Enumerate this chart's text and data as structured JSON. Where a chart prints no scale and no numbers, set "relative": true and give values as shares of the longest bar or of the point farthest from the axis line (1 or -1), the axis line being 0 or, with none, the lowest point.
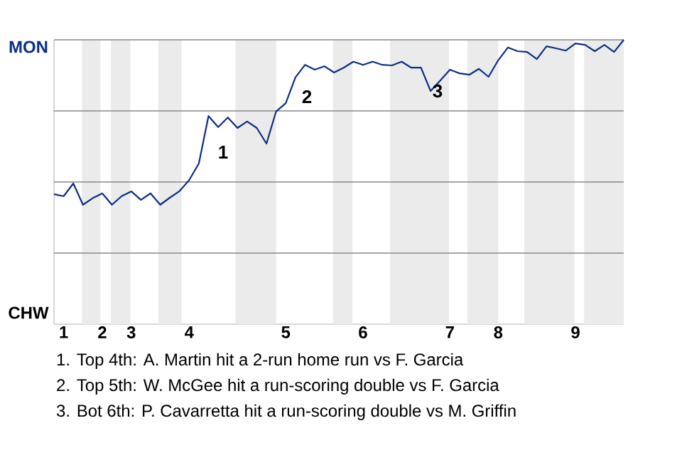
{
  "chart_data": {
    "type": "line",
    "relative": true,
    "categories": [
      null,
      "1",
      null,
      null,
      null,
      "2",
      null,
      null,
      "3",
      null,
      null,
      null,
      null,
      null,
      "4",
      null,
      null,
      null,
      null,
      null,
      null,
      null,
      null,
      null,
      "5",
      null,
      null,
      null,
      null,
      null,
      null,
      null,
      "6",
      null,
      null,
      null,
      null,
      null,
      null,
      null,
      null,
      "7",
      null,
      null,
      null,
      null,
      "8",
      null,
      null,
      null,
      null,
      null,
      null,
      null,
      "9",
      null,
      null,
      null,
      null,
      null
    ],
    "series": [
      {
        "color": "#0b2f86",
        "values": [
          0.457,
          0.45,
          0.495,
          0.42,
          0.443,
          0.46,
          0.42,
          0.45,
          0.467,
          0.437,
          0.46,
          0.42,
          0.445,
          0.468,
          0.507,
          0.565,
          0.732,
          0.693,
          0.727,
          0.69,
          0.713,
          0.69,
          0.635,
          0.748,
          0.777,
          0.868,
          0.912,
          0.895,
          0.907,
          0.885,
          0.902,
          0.923,
          0.912,
          0.923,
          0.912,
          0.91,
          0.923,
          0.902,
          0.902,
          0.82,
          0.857,
          0.895,
          0.882,
          0.877,
          0.898,
          0.87,
          0.928,
          0.973,
          0.96,
          0.957,
          0.932,
          0.977,
          0.97,
          0.962,
          0.987,
          0.982,
          0.96,
          0.982,
          0.957,
          1
        ]
      }
    ],
    "ref_lines": [
      {
        "axis": "y",
        "value": 0.25,
        "color": "#888888"
      },
      {
        "axis": "y",
        "value": 0.5,
        "color": "#888888"
      },
      {
        "axis": "y",
        "value": 0.75,
        "color": "#888888"
      },
      {
        "axis": "y",
        "value": 1,
        "color": "#888888"
      }
    ],
    "annotations": [
      "MON",
      "CHW",
      "1",
      "2",
      "3",
      "1. Top 4th: A. Martin hit a 2-run home run vs F. Garcia",
      "2. Top 5th: W. McGee hit a run-scoring double vs F. Garcia",
      "3. Bot 6th: P. Cavarretta hit a run-scoring double vs M. Griffin"
    ]
  }
}
